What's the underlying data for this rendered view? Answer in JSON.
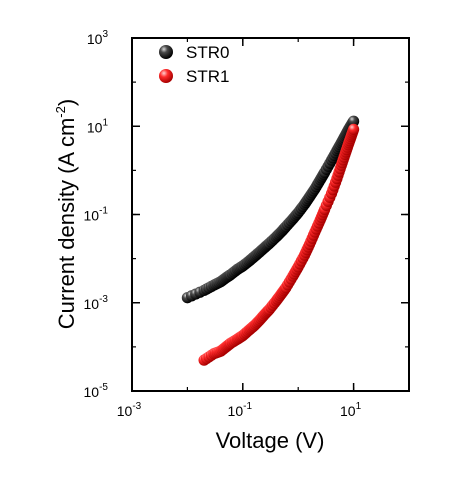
{
  "chart_data": {
    "type": "scatter",
    "xlabel": "Voltage (V)",
    "ylabel": "Current density (A cm",
    "ylabel_superscript": "-2",
    "ylabel_suffix": ")",
    "x_scale": "log",
    "y_scale": "log",
    "xlim": [
      0.001,
      100
    ],
    "ylim": [
      1e-05,
      1000
    ],
    "x_ticks": [
      {
        "value": 0.001,
        "base": "10",
        "exp": "-3"
      },
      {
        "value": 0.1,
        "base": "10",
        "exp": "-1"
      },
      {
        "value": 10,
        "base": "10",
        "exp": "1"
      }
    ],
    "y_ticks": [
      {
        "value": 1e-05,
        "base": "10",
        "exp": "-5"
      },
      {
        "value": 0.001,
        "base": "10",
        "exp": "-3"
      },
      {
        "value": 0.1,
        "base": "10",
        "exp": "-1"
      },
      {
        "value": 10,
        "base": "10",
        "exp": "1"
      },
      {
        "value": 1000,
        "base": "10",
        "exp": "3"
      }
    ],
    "legend_position": "top-left",
    "grid": false,
    "series": [
      {
        "name": "STR0",
        "color": "#000000",
        "x": [
          0.01,
          0.02,
          0.03,
          0.04,
          0.05,
          0.06,
          0.08,
          0.1,
          0.13,
          0.16,
          0.2,
          0.25,
          0.3,
          0.4,
          0.5,
          0.6,
          0.8,
          1.0,
          1.3,
          1.6,
          2.0,
          2.5,
          3.0,
          4.0,
          5.0,
          6.0,
          7.0,
          8.0,
          9.0,
          10.0
        ],
        "y": [
          0.0013,
          0.0019,
          0.0025,
          0.003,
          0.0037,
          0.0043,
          0.0057,
          0.0068,
          0.0088,
          0.011,
          0.014,
          0.018,
          0.022,
          0.031,
          0.041,
          0.053,
          0.079,
          0.11,
          0.17,
          0.25,
          0.38,
          0.61,
          0.9,
          1.7,
          2.8,
          4.2,
          6.0,
          8.2,
          10.5,
          13.0
        ]
      },
      {
        "name": "STR1",
        "color": "#ff1a1a",
        "x": [
          0.02,
          0.03,
          0.04,
          0.05,
          0.06,
          0.08,
          0.1,
          0.13,
          0.16,
          0.2,
          0.25,
          0.3,
          0.4,
          0.5,
          0.6,
          0.8,
          1.0,
          1.3,
          1.6,
          2.0,
          2.5,
          3.0,
          4.0,
          5.0,
          6.0,
          7.0,
          8.0,
          9.0,
          10.0
        ],
        "y": [
          5e-05,
          7e-05,
          8e-05,
          0.0001,
          0.00012,
          0.00015,
          0.00018,
          0.00024,
          0.0003,
          0.0004,
          0.00055,
          0.0007,
          0.0011,
          0.0016,
          0.0022,
          0.004,
          0.0065,
          0.012,
          0.021,
          0.04,
          0.075,
          0.13,
          0.3,
          0.65,
          1.3,
          2.3,
          3.8,
          5.8,
          8.5
        ]
      }
    ]
  }
}
